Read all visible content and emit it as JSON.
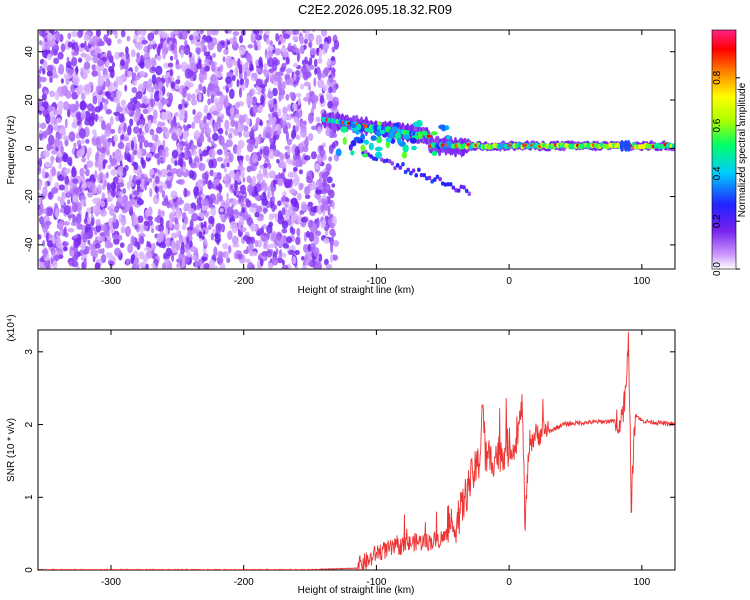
{
  "title": "C2E2.2026.095.18.32.R09",
  "chart_data": [
    {
      "type": "heatmap",
      "xlabel": "Height of straight line (km)",
      "ylabel": "Frequency (Hz)",
      "xlim": [
        -355,
        125
      ],
      "ylim": [
        -50,
        49
      ],
      "x_ticks": [
        -300,
        -200,
        -100,
        0,
        100
      ],
      "y_ticks": [
        -40,
        -20,
        0,
        20,
        40
      ],
      "x_tick_labels": [
        "-300",
        "-200",
        "-100",
        "0",
        "100"
      ],
      "y_tick_labels": [
        "-40",
        "-20",
        "0",
        "20",
        "40"
      ],
      "colorbar": {
        "label": "Normalized spectral amplitude",
        "range": [
          0.0,
          1.0
        ],
        "ticks": [
          0.0,
          0.2,
          0.4,
          0.6,
          0.8
        ],
        "tick_labels": [
          "0.0",
          "0.2",
          "0.4",
          "0.6",
          "0.8"
        ],
        "colormap": [
          "#ffffff",
          "#cc99ff",
          "#7722ee",
          "#2222ff",
          "#00ccff",
          "#00ff66",
          "#aaff00",
          "#ffff00",
          "#ff8800",
          "#ff0000",
          "#ff2288"
        ]
      },
      "features": {
        "noise_region_x": [
          -355,
          -130
        ],
        "main_band_start_x": -140,
        "main_band_center_freq": 1,
        "branch_upper_start": [
          -140,
          12
        ],
        "branch_lower_end": [
          -30,
          -18
        ]
      }
    },
    {
      "type": "line",
      "xlabel": "Height of straight line (km)",
      "ylabel": "SNR (10 * v/v)",
      "y_multiplier": "(x10⁴)",
      "xlim": [
        -355,
        125
      ],
      "ylim": [
        0,
        3.3
      ],
      "x_ticks": [
        -300,
        -200,
        -100,
        0,
        100
      ],
      "y_ticks": [
        0,
        1,
        2,
        3
      ],
      "x_tick_labels": [
        "-300",
        "-200",
        "-100",
        "0",
        "100"
      ],
      "y_tick_labels": [
        "0",
        "1",
        "2",
        "3"
      ],
      "line_color": "#ee3333",
      "series": [
        {
          "x": [
            -355,
            -250,
            -150,
            -115,
            -105,
            -100,
            -90,
            -80,
            -70,
            -60,
            -50,
            -40,
            -35,
            -30,
            -28,
            -25,
            -22,
            -20,
            -18,
            -15,
            -10,
            -5,
            0,
            5,
            10,
            12,
            15,
            20,
            30,
            40,
            50,
            60,
            70,
            80,
            85,
            88,
            90,
            92,
            95,
            100,
            110,
            125
          ],
          "values": [
            0.0,
            0.0,
            0.0,
            0.02,
            0.1,
            0.2,
            0.25,
            0.3,
            0.35,
            0.35,
            0.4,
            0.55,
            0.8,
            1.1,
            1.2,
            1.3,
            1.45,
            2.3,
            1.5,
            1.4,
            1.5,
            1.55,
            1.6,
            1.65,
            2.25,
            0.5,
            1.7,
            1.8,
            1.9,
            2.0,
            2.02,
            2.03,
            2.04,
            2.05,
            2.1,
            2.5,
            3.3,
            0.85,
            2.15,
            2.05,
            2.03,
            2.0
          ]
        }
      ]
    }
  ]
}
